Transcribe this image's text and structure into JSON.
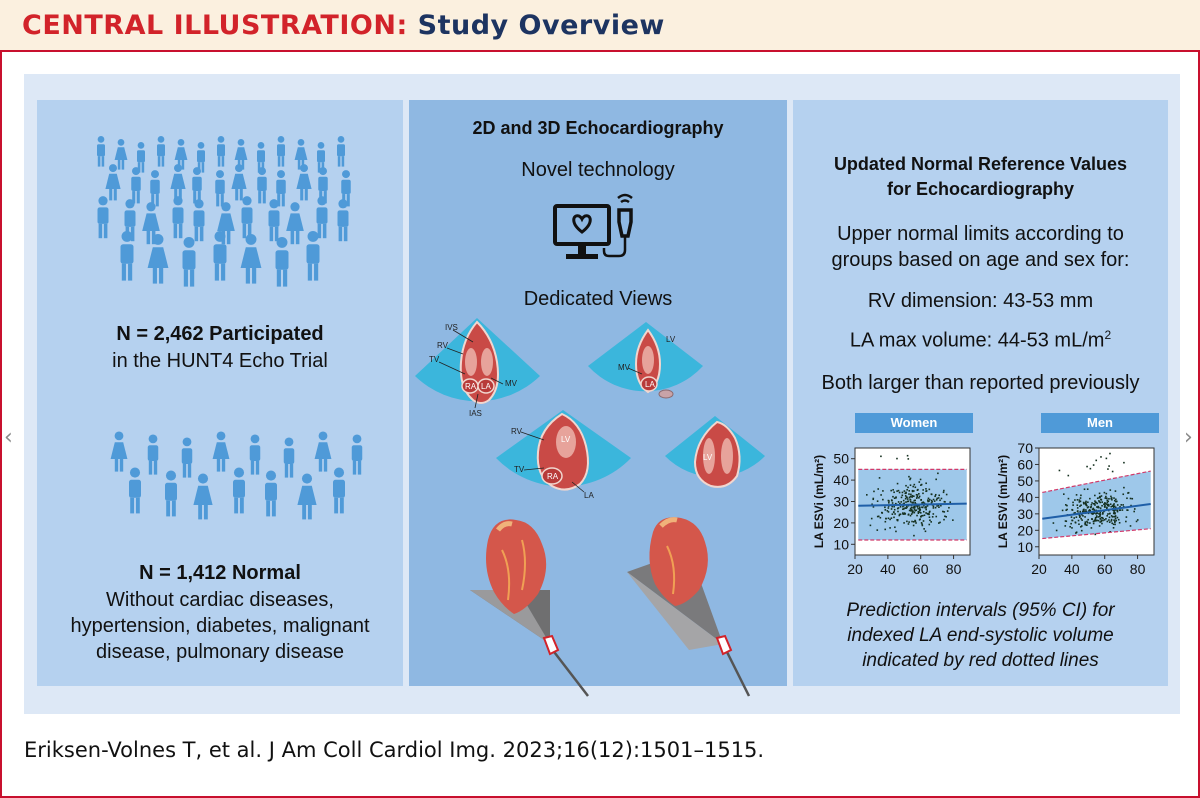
{
  "header": {
    "label": "CENTRAL ILLUSTRATION:",
    "title": "Study Overview"
  },
  "left_panel": {
    "participated_title": "N = 2,462 Participated",
    "participated_sub": "in the HUNT4 Echo Trial",
    "normal_title": "N = 1,412 Normal",
    "normal_lines": [
      "Without cardiac diseases,",
      "hypertension, diabetes, malignant",
      "disease, pulmonary disease"
    ]
  },
  "middle_panel": {
    "title": "2D and 3D Echocardiography",
    "subtitle": "Novel technology",
    "views_title": "Dedicated Views",
    "view_labels": {
      "ivs": "IVS",
      "rv": "RV",
      "tv": "TV",
      "ra": "RA",
      "la": "LA",
      "mv": "MV",
      "ias": "IAS",
      "lv": "LV"
    }
  },
  "right_panel": {
    "title_lines": [
      "Updated Normal Reference Values",
      "for Echocardiography"
    ],
    "intro_lines": [
      "Upper normal limits according to",
      "groups based on age and sex for:"
    ],
    "rv_dimension": "RV dimension: 43-53 mm",
    "la_volume": "LA max volume: 44-53 mL/m",
    "la_volume_sup": "2",
    "conclusion": "Both larger than reported previously",
    "caption_lines": [
      "Prediction intervals (95% CI) for",
      "indexed LA end-systolic volume",
      "indicated by red dotted lines"
    ]
  },
  "chart_data": [
    {
      "type": "scatter",
      "title": "Women",
      "xlabel": "",
      "ylabel": "LA ESVi (mL/m²)",
      "x_ticks": [
        "20",
        "40",
        "60",
        "80"
      ],
      "y_ticks": [
        "10",
        "20",
        "30",
        "40",
        "50"
      ],
      "xlim": [
        20,
        90
      ],
      "ylim": [
        5,
        55
      ],
      "fit_line": {
        "x": [
          22,
          88
        ],
        "y": [
          28,
          29
        ]
      },
      "prediction_interval_upper": {
        "x": [
          22,
          88
        ],
        "y": [
          45,
          45
        ]
      },
      "prediction_interval_lower": {
        "x": [
          22,
          88
        ],
        "y": [
          12,
          12
        ]
      },
      "x_range_points": [
        25,
        85
      ],
      "y_center": 28
    },
    {
      "type": "scatter",
      "title": "Men",
      "xlabel": "",
      "ylabel": "LA ESVi (mL/m²)",
      "x_ticks": [
        "20",
        "40",
        "60",
        "80"
      ],
      "y_ticks": [
        "10",
        "20",
        "30",
        "40",
        "50",
        "60",
        "70"
      ],
      "xlim": [
        20,
        90
      ],
      "ylim": [
        5,
        70
      ],
      "fit_line": {
        "x": [
          22,
          88
        ],
        "y": [
          27,
          36
        ]
      },
      "prediction_interval_upper": {
        "x": [
          22,
          88
        ],
        "y": [
          43,
          56
        ]
      },
      "prediction_interval_lower": {
        "x": [
          22,
          88
        ],
        "y": [
          15,
          21
        ]
      },
      "x_range_points": [
        25,
        85
      ],
      "y_center": 31
    }
  ],
  "citation": "Eriksen-Volnes T, et al. J Am Coll Cardiol Img. 2023;16(12):1501–1515.",
  "colors": {
    "brand_red": "#d2232a",
    "brand_navy": "#1d3461",
    "people_blue": "#4f9ad8",
    "chart_header": "#4f9ad8",
    "band_fill": "#4f9ad8",
    "pi_line": "#d13a6a"
  },
  "nav": {
    "prev_icon": "chevron-left-icon",
    "next_icon": "chevron-right-icon"
  }
}
